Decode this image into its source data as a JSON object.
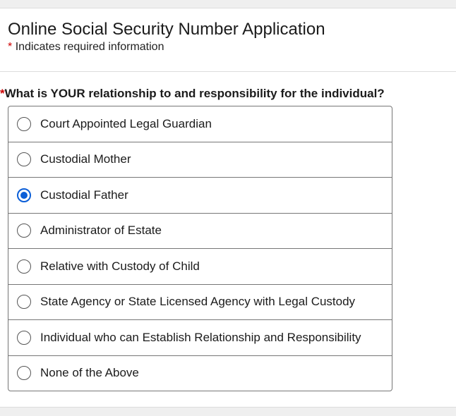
{
  "header": {
    "title": "Online Social Security Number Application",
    "required_star": "*",
    "required_note": "Indicates required information"
  },
  "question": {
    "star": "*",
    "text": "What is YOUR relationship to and responsibility for the individual?"
  },
  "accent_color": "#0b5ed7",
  "options": [
    {
      "label": "Court Appointed Legal Guardian",
      "selected": false
    },
    {
      "label": "Custodial Mother",
      "selected": false
    },
    {
      "label": "Custodial Father",
      "selected": true
    },
    {
      "label": "Administrator of Estate",
      "selected": false
    },
    {
      "label": "Relative with Custody of Child",
      "selected": false
    },
    {
      "label": "State Agency or State Licensed Agency with Legal Custody",
      "selected": false
    },
    {
      "label": "Individual who can Establish Relationship and Responsibility",
      "selected": false
    },
    {
      "label": "None of the Above",
      "selected": false
    }
  ]
}
